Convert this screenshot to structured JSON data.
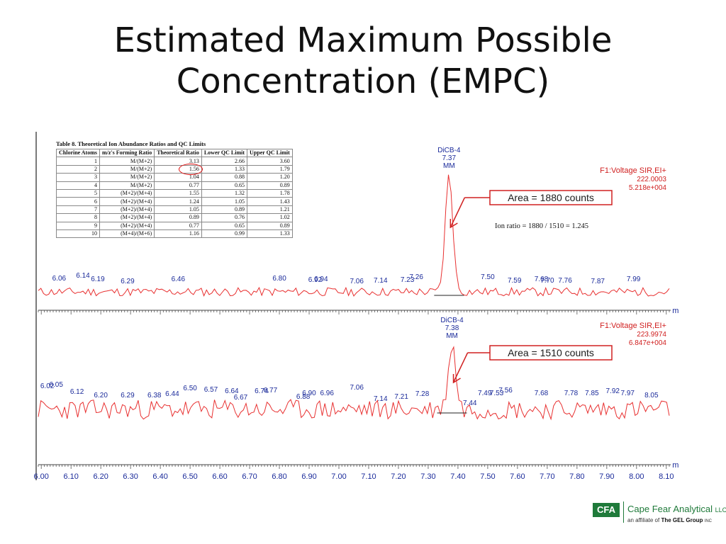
{
  "slide": {
    "title_line1": "Estimated Maximum Possible",
    "title_line2": "Concentration (EMPC)"
  },
  "qc_table": {
    "caption": "Table 8.  Theoretical Ion Abundance Ratios and QC Limits",
    "headers": [
      "Chlorine Atoms",
      "m/z's Forming Ratio",
      "Theoretical Ratio",
      "Lower QC Limit",
      "Upper QC Limit"
    ],
    "rows": [
      [
        "1",
        "M/(M+2)",
        "3.13",
        "2.66",
        "3.60"
      ],
      [
        "2",
        "M/(M+2)",
        "1.56",
        "1.33",
        "1.79"
      ],
      [
        "3",
        "M/(M+2)",
        "1.04",
        "0.88",
        "1.20"
      ],
      [
        "4",
        "M/(M+2)",
        "0.77",
        "0.65",
        "0.89"
      ],
      [
        "5",
        "(M+2)/(M+4)",
        "1.55",
        "1.32",
        "1.78"
      ],
      [
        "6",
        "(M+2)/(M+4)",
        "1.24",
        "1.05",
        "1.43"
      ],
      [
        "7",
        "(M+2)/(M+4)",
        "1.05",
        "0.89",
        "1.21"
      ],
      [
        "8",
        "(M+2)/(M+4)",
        "0.89",
        "0.76",
        "1.02"
      ],
      [
        "9",
        "(M+2)/(M+4)",
        "0.77",
        "0.65",
        "0.89"
      ],
      [
        "10",
        "(M+4)/(M+6)",
        "1.16",
        "0.99",
        "1.33"
      ]
    ],
    "highlighted_row": 1,
    "highlight_color": "#e01010"
  },
  "chart_data": [
    {
      "type": "line",
      "panel": "top",
      "color": "#e83030",
      "x_unit": "min",
      "xlim": [
        5.99,
        8.11
      ],
      "peak": {
        "label_name": "DiCB-4",
        "label_rt": "7.37",
        "label_mm": "MM",
        "rt": 7.37,
        "height": 1.0
      },
      "header_lines": [
        "F1:Voltage SIR,EI+",
        "222.0003",
        "5.218e+004"
      ],
      "area_label": "Area = 1880 counts",
      "ratio_note": "Ion ratio = 1880 / 1510 = 1.245",
      "peak_labels": [
        {
          "text": "6.06",
          "rt": 6.06,
          "level": 0.16
        },
        {
          "text": "6.14",
          "rt": 6.14,
          "level": 0.2
        },
        {
          "text": "6.19",
          "rt": 6.19,
          "level": 0.15
        },
        {
          "text": "6.29",
          "rt": 6.29,
          "level": 0.12
        },
        {
          "text": "6.46",
          "rt": 6.46,
          "level": 0.15
        },
        {
          "text": "6.80",
          "rt": 6.8,
          "level": 0.16
        },
        {
          "text": "6.92",
          "rt": 6.92,
          "level": 0.14
        },
        {
          "text": "6.94",
          "rt": 6.94,
          "level": 0.15
        },
        {
          "text": "7.06",
          "rt": 7.06,
          "level": 0.12
        },
        {
          "text": "7.14",
          "rt": 7.14,
          "level": 0.13
        },
        {
          "text": "7.23",
          "rt": 7.23,
          "level": 0.14
        },
        {
          "text": "7.26",
          "rt": 7.26,
          "level": 0.18
        },
        {
          "text": "7.50",
          "rt": 7.5,
          "level": 0.18
        },
        {
          "text": "7.59",
          "rt": 7.59,
          "level": 0.13
        },
        {
          "text": "7.68",
          "rt": 7.68,
          "level": 0.15
        },
        {
          "text": "7.70",
          "rt": 7.7,
          "level": 0.13
        },
        {
          "text": "7.76",
          "rt": 7.76,
          "level": 0.13
        },
        {
          "text": "7.87",
          "rt": 7.87,
          "level": 0.12
        },
        {
          "text": "7.99",
          "rt": 7.99,
          "level": 0.15
        }
      ]
    },
    {
      "type": "line",
      "panel": "bottom",
      "color": "#e83030",
      "x_unit": "min",
      "xlim": [
        5.99,
        8.11
      ],
      "peak": {
        "label_name": "DiCB-4",
        "label_rt": "7.38",
        "label_mm": "MM",
        "rt": 7.38,
        "height": 0.65
      },
      "header_lines": [
        "F1:Voltage SIR,EI+",
        "223.9974",
        "6.847e+004"
      ],
      "area_label": "Area = 1510 counts",
      "peak_labels": [
        {
          "text": "6.02",
          "rt": 6.02,
          "level": 0.3
        },
        {
          "text": "6.05",
          "rt": 6.05,
          "level": 0.32
        },
        {
          "text": "6.12",
          "rt": 6.12,
          "level": 0.22
        },
        {
          "text": "6.20",
          "rt": 6.2,
          "level": 0.17
        },
        {
          "text": "6.29",
          "rt": 6.29,
          "level": 0.17
        },
        {
          "text": "6.38",
          "rt": 6.38,
          "level": 0.17
        },
        {
          "text": "6.44",
          "rt": 6.44,
          "level": 0.19
        },
        {
          "text": "6.50",
          "rt": 6.5,
          "level": 0.27
        },
        {
          "text": "6.57",
          "rt": 6.57,
          "level": 0.25
        },
        {
          "text": "6.64",
          "rt": 6.64,
          "level": 0.23
        },
        {
          "text": "6.67",
          "rt": 6.67,
          "level": 0.14
        },
        {
          "text": "6.74",
          "rt": 6.74,
          "level": 0.23
        },
        {
          "text": "6.77",
          "rt": 6.77,
          "level": 0.24
        },
        {
          "text": "6.88",
          "rt": 6.88,
          "level": 0.15
        },
        {
          "text": "6.90",
          "rt": 6.9,
          "level": 0.2
        },
        {
          "text": "6.96",
          "rt": 6.96,
          "level": 0.2
        },
        {
          "text": "7.06",
          "rt": 7.06,
          "level": 0.28
        },
        {
          "text": "7.14",
          "rt": 7.14,
          "level": 0.12
        },
        {
          "text": "7.21",
          "rt": 7.21,
          "level": 0.15
        },
        {
          "text": "7.28",
          "rt": 7.28,
          "level": 0.19
        },
        {
          "text": "7.44",
          "rt": 7.44,
          "level": 0.06
        },
        {
          "text": "7.49",
          "rt": 7.49,
          "level": 0.2
        },
        {
          "text": "7.53",
          "rt": 7.53,
          "level": 0.2
        },
        {
          "text": "7.56",
          "rt": 7.56,
          "level": 0.24
        },
        {
          "text": "7.68",
          "rt": 7.68,
          "level": 0.2
        },
        {
          "text": "7.78",
          "rt": 7.78,
          "level": 0.2
        },
        {
          "text": "7.85",
          "rt": 7.85,
          "level": 0.2
        },
        {
          "text": "7.92",
          "rt": 7.92,
          "level": 0.23
        },
        {
          "text": "7.97",
          "rt": 7.97,
          "level": 0.2
        },
        {
          "text": "8.05",
          "rt": 8.05,
          "level": 0.17
        }
      ],
      "x_ticks": [
        "6.00",
        "6.10",
        "6.20",
        "6.30",
        "6.40",
        "6.50",
        "6.60",
        "6.70",
        "6.80",
        "6.90",
        "7.00",
        "7.10",
        "7.20",
        "7.30",
        "7.40",
        "7.50",
        "7.60",
        "7.70",
        "7.80",
        "7.90",
        "8.00",
        "8.10"
      ]
    }
  ],
  "logo": {
    "abbr": "CFA",
    "name": "Cape Fear Analytical",
    "name_suffix": "LLC",
    "tagline_prefix": "an affiliate of",
    "tagline_company": "The GEL Group",
    "tagline_suffix": "INC"
  }
}
